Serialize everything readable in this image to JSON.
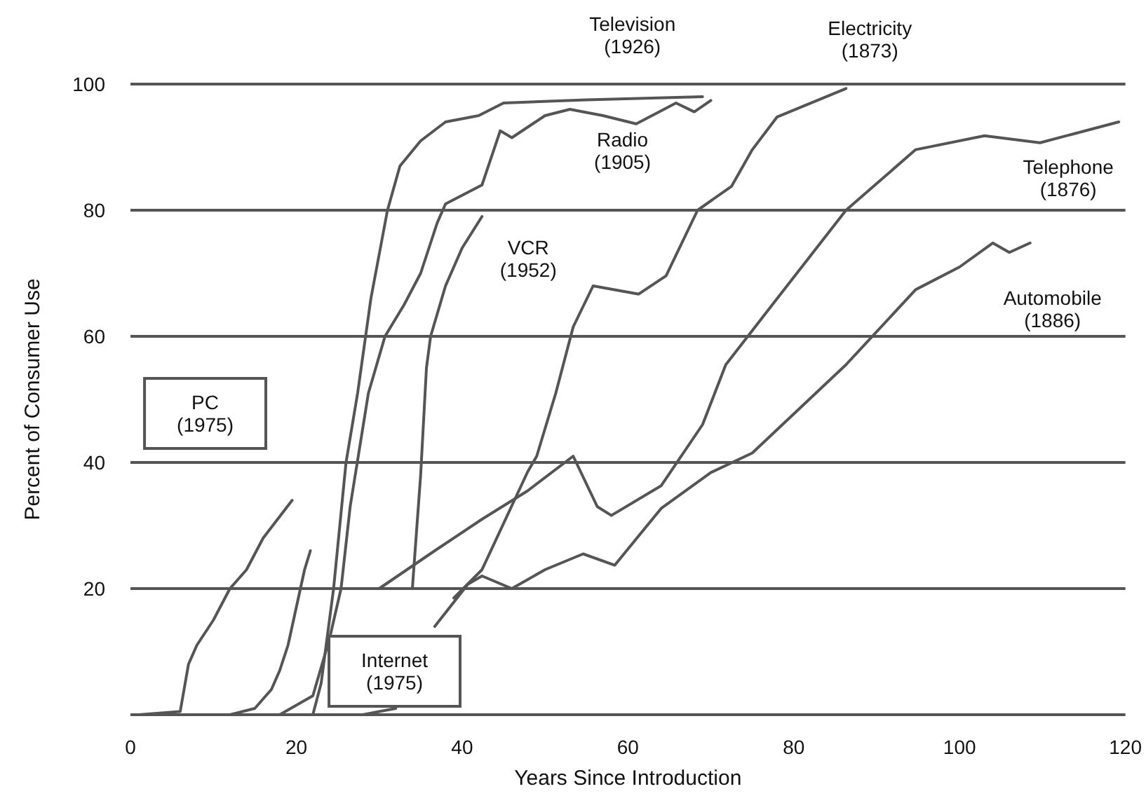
{
  "chart_data": {
    "type": "line",
    "xlabel": "Years Since Introduction",
    "ylabel": "Percent of Consumer Use",
    "xlim": [
      0,
      120
    ],
    "xticks": [
      0,
      20,
      40,
      60,
      80,
      100,
      120
    ],
    "ylim": [
      0,
      100
    ],
    "yticks": [
      {
        "value": 0,
        "label": null
      },
      20,
      40,
      60,
      80,
      100
    ],
    "grid": "y",
    "marker": "none",
    "line_style": "solid",
    "series": [
      {
        "name": "PC (1975)",
        "color": "#555555",
        "x": [
          1,
          6,
          7,
          8,
          10,
          12,
          14,
          16,
          19.5
        ],
        "values": [
          0,
          0.5,
          8,
          11,
          15,
          20,
          23,
          28,
          34
        ]
      },
      {
        "name": "Internet (1975)",
        "color": "#555555",
        "x": [
          12,
          15,
          17,
          18,
          19,
          20,
          21,
          21.7
        ],
        "values": [
          0,
          1,
          4,
          7,
          11,
          17,
          23,
          26
        ]
      },
      {
        "name": "Television (1926)",
        "color": "#555555",
        "x": [
          22,
          23,
          24.5,
          26,
          27.4,
          29,
          31,
          32.5,
          35,
          38,
          42,
          45,
          55,
          69
        ],
        "values": [
          0,
          5,
          20,
          40,
          51,
          66,
          80,
          87,
          91,
          94,
          95,
          97,
          97.5,
          98
        ]
      },
      {
        "name": "Radio (1905)",
        "color": "#555555",
        "x": [
          18,
          22,
          24,
          25.4,
          26.5,
          28.7,
          30.7,
          33,
          35,
          37,
          38,
          42.4,
          44.6,
          46,
          50,
          53,
          57,
          61,
          65.8,
          68,
          70
        ],
        "values": [
          0,
          3,
          12,
          20,
          33,
          51,
          60,
          65,
          70,
          78,
          81,
          84,
          92.6,
          91.5,
          95,
          96,
          95,
          93.7,
          97,
          95.6,
          97.4
        ]
      },
      {
        "name": "VCR (1952)",
        "color": "#555555",
        "x": [
          28,
          32,
          33,
          34,
          35,
          35.7,
          36.2,
          38,
          40,
          42.4
        ],
        "values": [
          0,
          1,
          null,
          20,
          38,
          55,
          60,
          68,
          74,
          79
        ]
      },
      {
        "name": "Electricity (1873)",
        "color": "#555555",
        "x": [
          39,
          42.4,
          47.9,
          49,
          51.3,
          53.4,
          55.8,
          61.3,
          64.6,
          68.4,
          72.5,
          75,
          78,
          86.3
        ],
        "values": [
          18.5,
          23,
          38.5,
          41,
          51,
          61.5,
          68,
          66.7,
          69.6,
          80,
          83.8,
          89.6,
          94.8,
          99.3
        ]
      },
      {
        "name": "Telephone (1876)",
        "color": "#555555",
        "x": [
          30,
          36.7,
          42.4,
          47.9,
          53.4,
          56.3,
          58,
          64,
          69,
          71.8,
          78,
          86.3,
          94.7,
          103,
          109.7,
          119.2
        ],
        "values": [
          20,
          26,
          31,
          35.5,
          41,
          33,
          31.6,
          36.3,
          46,
          55.5,
          66,
          80,
          89.6,
          91.8,
          90.7,
          94
        ]
      },
      {
        "name": "Automobile (1886)",
        "color": "#555555",
        "x": [
          36.7,
          40.7,
          42.4,
          46,
          50,
          54.6,
          58.4,
          64,
          70,
          75,
          86.3,
          94.7,
          100,
          104,
          106,
          108.5
        ],
        "values": [
          14,
          20.7,
          22,
          20,
          23,
          25.5,
          23.7,
          32.7,
          38.4,
          41.5,
          55.5,
          67.4,
          71,
          74.8,
          73.3,
          74.8
        ]
      }
    ]
  }
}
